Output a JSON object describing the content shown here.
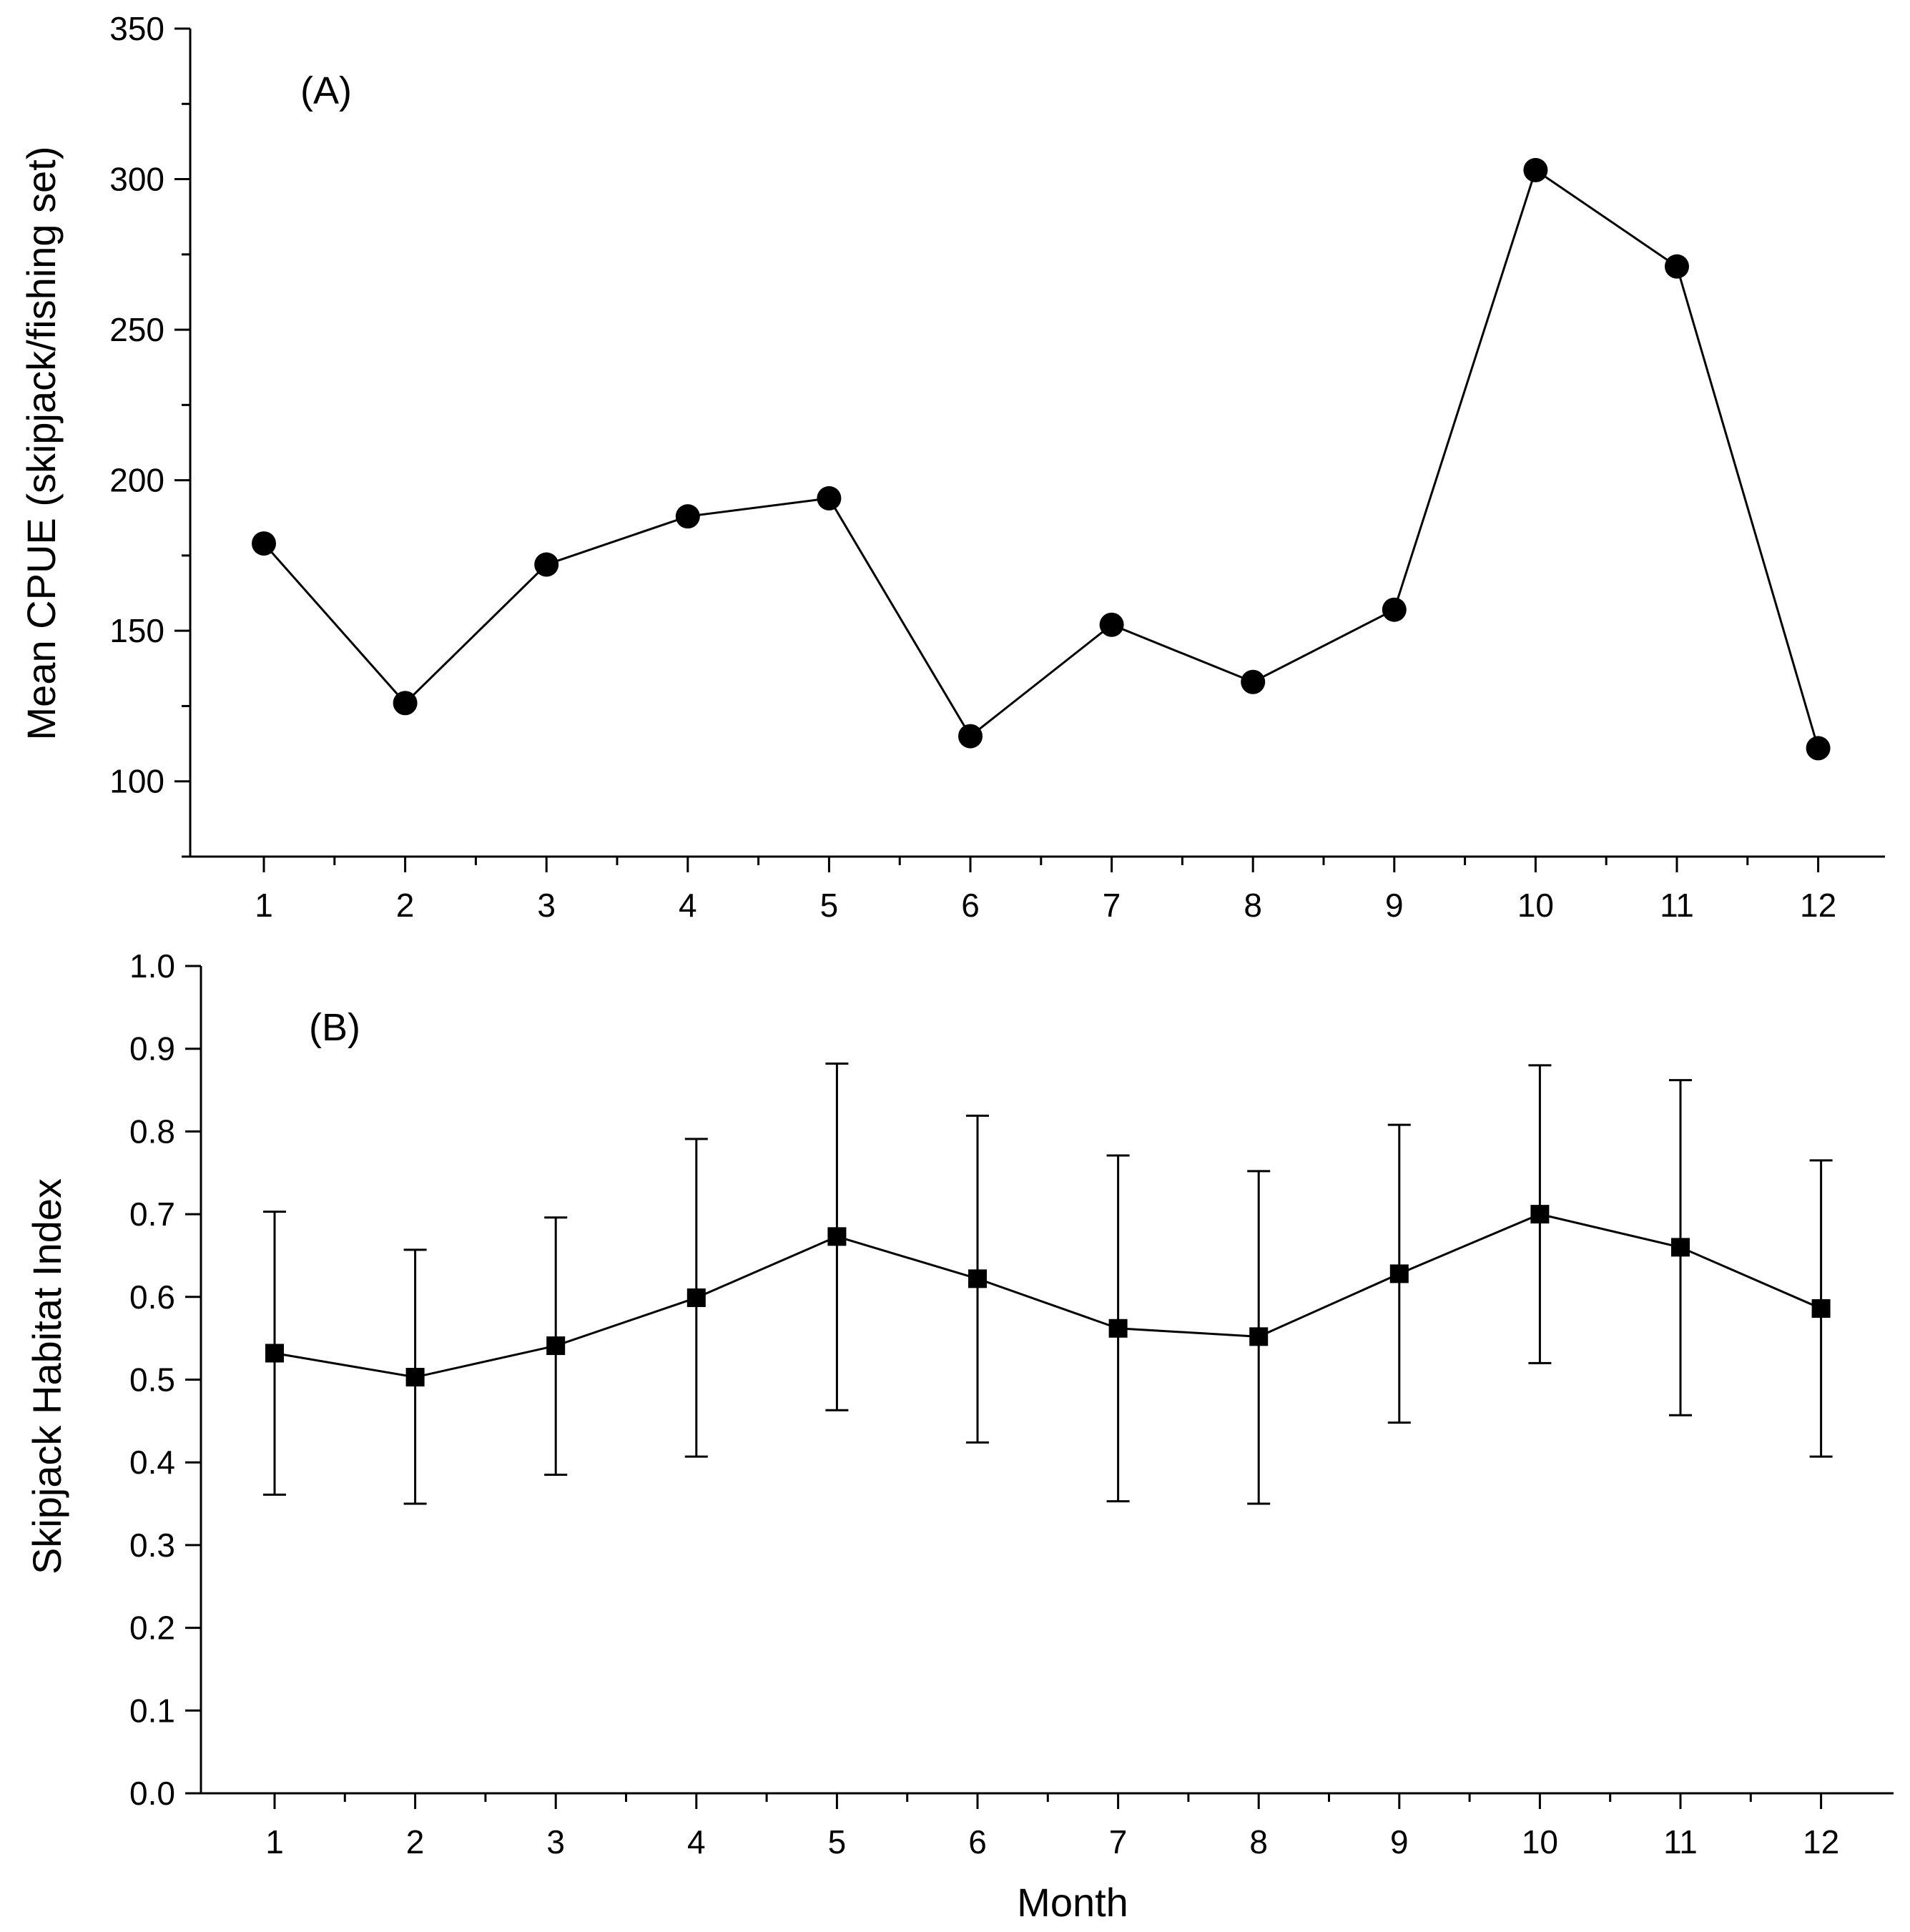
{
  "chart_data": [
    {
      "panel": "A",
      "type": "line",
      "panel_label": "(A)",
      "ylabel": "Mean CPUE (skipjack/fishing set)",
      "xlabel": "",
      "x": [
        1,
        2,
        3,
        4,
        5,
        6,
        7,
        8,
        9,
        10,
        11,
        12
      ],
      "values": [
        179,
        126,
        172,
        188,
        194,
        115,
        152,
        133,
        157,
        303,
        271,
        111
      ],
      "ylim": [
        75,
        350
      ],
      "yticks": [
        100,
        150,
        200,
        250,
        300,
        350
      ],
      "marker": "circle",
      "color": "#000000"
    },
    {
      "panel": "B",
      "type": "line",
      "panel_label": "(B)",
      "ylabel": "Skipjack Habitat Index",
      "xlabel": "Month",
      "x": [
        1,
        2,
        3,
        4,
        5,
        6,
        7,
        8,
        9,
        10,
        11,
        12
      ],
      "values": [
        0.532,
        0.503,
        0.541,
        0.599,
        0.673,
        0.622,
        0.562,
        0.552,
        0.628,
        0.7,
        0.66,
        0.586
      ],
      "error_upper": [
        0.703,
        0.657,
        0.696,
        0.791,
        0.882,
        0.819,
        0.771,
        0.752,
        0.808,
        0.88,
        0.862,
        0.765
      ],
      "error_lower": [
        0.361,
        0.35,
        0.385,
        0.407,
        0.463,
        0.424,
        0.353,
        0.35,
        0.448,
        0.52,
        0.457,
        0.407
      ],
      "ylim": [
        0.0,
        1.0
      ],
      "yticks": [
        "0.0",
        "0.1",
        "0.2",
        "0.3",
        "0.4",
        "0.5",
        "0.6",
        "0.7",
        "0.8",
        "0.9",
        "1.0"
      ],
      "marker": "square",
      "color": "#000000"
    }
  ]
}
